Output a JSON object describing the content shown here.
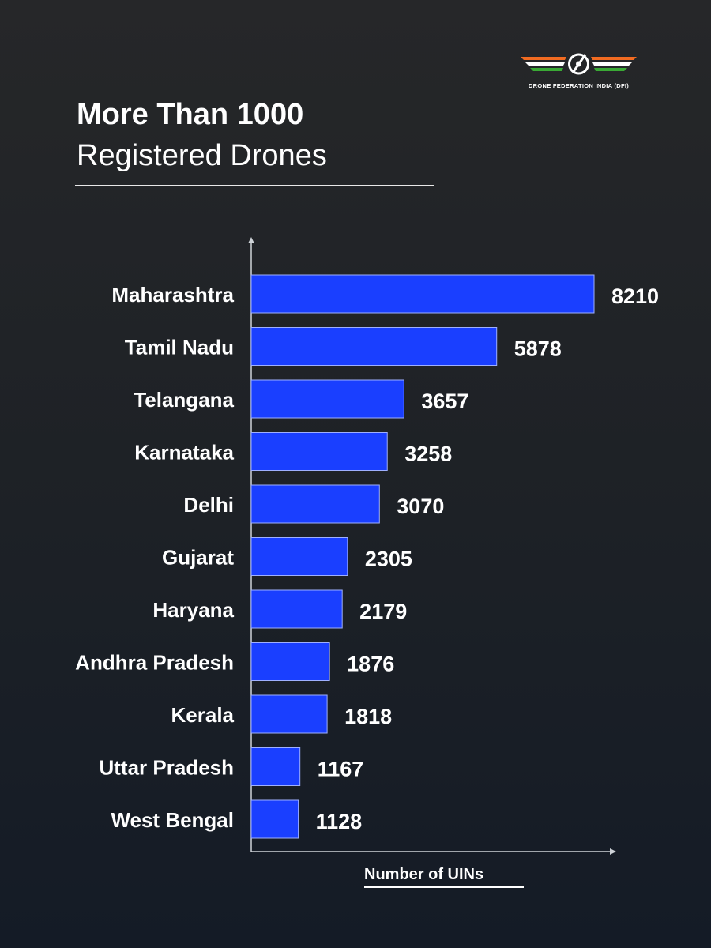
{
  "brand": {
    "name": "DRONE FEDERATION INDIA (DFI)",
    "colors": {
      "saffron": "#f26b21",
      "white": "#ffffff",
      "green": "#3aa935"
    }
  },
  "title": {
    "main": "More Than 1000",
    "sub": "Registered Drones"
  },
  "colors": {
    "bar": "#1a3fff",
    "bar_stroke": "#9fb0ff",
    "axis": "#cfd3d8"
  },
  "chart_data": {
    "type": "bar",
    "orientation": "horizontal",
    "title": "More Than 1000 Registered Drones",
    "xlabel": "Number of UINs",
    "ylabel": "",
    "xlim": [
      0,
      10000
    ],
    "grid": false,
    "categories": [
      "Maharashtra",
      "Tamil Nadu",
      "Telangana",
      "Karnataka",
      "Delhi",
      "Gujarat",
      "Haryana",
      "Andhra Pradesh",
      "Kerala",
      "Uttar Pradesh",
      "West Bengal"
    ],
    "values": [
      8210,
      5878,
      3657,
      3258,
      3070,
      2305,
      2179,
      1876,
      1818,
      1167,
      1128
    ]
  }
}
